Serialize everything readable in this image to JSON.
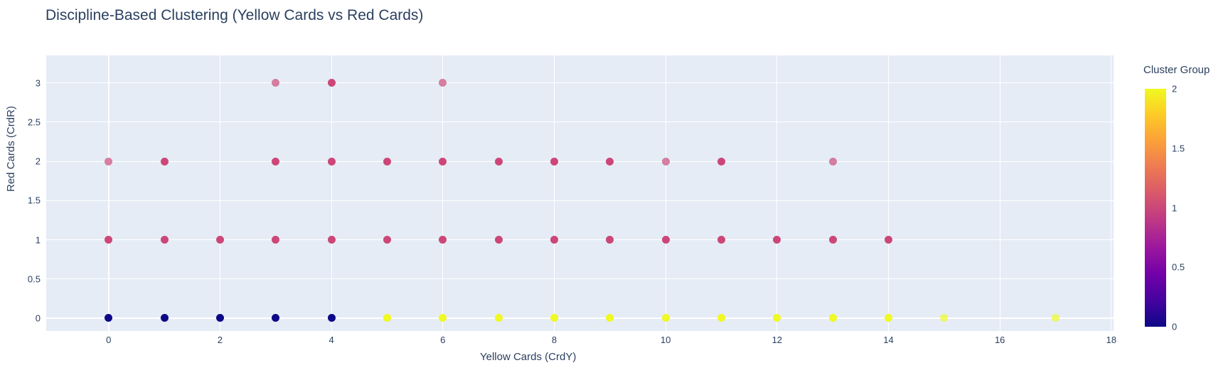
{
  "title": "Discipline-Based Clustering (Yellow Cards vs Red Cards)",
  "colors": {
    "font": "#2a3f5f",
    "plot_background": "#e5ecf6",
    "grid": "#ffffff",
    "paper": "#ffffff"
  },
  "chart_data": {
    "type": "scatter",
    "title": "Discipline-Based Clustering (Yellow Cards vs Red Cards)",
    "xlabel": "Yellow Cards (CrdY)",
    "ylabel": "Red Cards (CrdR)",
    "x_range": [
      -1.12,
      18.04
    ],
    "y_range": [
      -0.163,
      3.35
    ],
    "x_ticks": [
      0,
      2,
      4,
      6,
      8,
      10,
      12,
      14,
      16,
      18
    ],
    "y_ticks": [
      0,
      0.5,
      1,
      1.5,
      2,
      2.5,
      3
    ],
    "grid": true,
    "marker_size": 11,
    "cluster_colors": {
      "0": "#0d0887",
      "1": "#cc4778",
      "2": "#f0f921"
    },
    "series": [
      {
        "name": "cluster-0",
        "cluster": 0,
        "points": [
          [
            0,
            0,
            0
          ],
          [
            1,
            0,
            0
          ],
          [
            2,
            0,
            0
          ],
          [
            3,
            0,
            0
          ],
          [
            4,
            0,
            0
          ]
        ]
      },
      {
        "name": "cluster-1",
        "cluster": 1,
        "points": [
          [
            0,
            1,
            0
          ],
          [
            1,
            1,
            0
          ],
          [
            2,
            1,
            0
          ],
          [
            3,
            1,
            0
          ],
          [
            4,
            1,
            0
          ],
          [
            5,
            1,
            0
          ],
          [
            6,
            1,
            0
          ],
          [
            7,
            1,
            0
          ],
          [
            8,
            1,
            0
          ],
          [
            9,
            1,
            0
          ],
          [
            10,
            1,
            0
          ],
          [
            11,
            1,
            0
          ],
          [
            12,
            1,
            0
          ],
          [
            13,
            1,
            0
          ],
          [
            14,
            1,
            0
          ],
          [
            0,
            2,
            1
          ],
          [
            1,
            2,
            0
          ],
          [
            3,
            2,
            0
          ],
          [
            4,
            2,
            0
          ],
          [
            5,
            2,
            0
          ],
          [
            6,
            2,
            0
          ],
          [
            7,
            2,
            0
          ],
          [
            8,
            2,
            0
          ],
          [
            9,
            2,
            0
          ],
          [
            10,
            2,
            1
          ],
          [
            11,
            2,
            0
          ],
          [
            13,
            2,
            1
          ],
          [
            3,
            3,
            1
          ],
          [
            4,
            3,
            0
          ],
          [
            6,
            3,
            1
          ]
        ]
      },
      {
        "name": "cluster-2",
        "cluster": 2,
        "points": [
          [
            5,
            0,
            0
          ],
          [
            6,
            0,
            0
          ],
          [
            7,
            0,
            0
          ],
          [
            8,
            0,
            0
          ],
          [
            9,
            0,
            0
          ],
          [
            10,
            0,
            0
          ],
          [
            11,
            0,
            0
          ],
          [
            12,
            0,
            0
          ],
          [
            13,
            0,
            0
          ],
          [
            14,
            0,
            0
          ],
          [
            15,
            0,
            1
          ],
          [
            17,
            0,
            1
          ]
        ]
      }
    ],
    "point_flag_note": "third value per point: 1 = faded (single occurrence, lower opacity)",
    "colorbar": {
      "title": "Cluster Group",
      "range": [
        0,
        2
      ],
      "ticks": [
        0,
        0.5,
        1,
        1.5,
        2
      ],
      "gradient_bottom_to_top": [
        "#0d0887",
        "#46039f",
        "#7201a8",
        "#9c179e",
        "#bd3786",
        "#d8576b",
        "#ed7953",
        "#fb9f3a",
        "#fdca26",
        "#f0f921"
      ]
    }
  }
}
